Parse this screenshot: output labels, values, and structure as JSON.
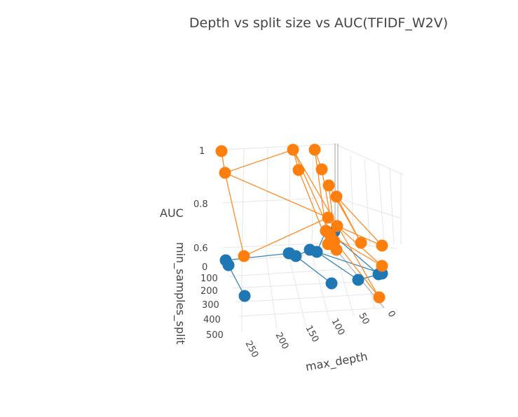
{
  "chart_data": {
    "type": "scatter",
    "title": "Depth vs split size vs AUC(TFIDF_W2V)",
    "zlabel": "AUC",
    "ylabel": "min_samples_split",
    "xlabel": "max_depth",
    "z_ticks": [
      "1",
      "0.8",
      "0.6"
    ],
    "y_ticks": [
      "0",
      "100",
      "200",
      "300",
      "400",
      "500"
    ],
    "x_ticks": [
      "250",
      "200",
      "150",
      "100",
      "50",
      "0"
    ],
    "colors": {
      "blue": "#1f77b4",
      "orange": "#ff7f0e",
      "grid": "#e6e6e6",
      "zero_axis": "#b0b0b0"
    },
    "series": [
      {
        "color": "#1f77b4",
        "values": [
          0.585,
          0.587,
          0.58,
          0.599,
          0.602,
          0.615,
          0.601,
          0.6,
          0.585,
          0.598,
          0.605,
          0.61,
          0.603,
          0.604,
          0.604
        ]
      },
      {
        "color": "#ff7f0e",
        "values": [
          1.0,
          0.99,
          0.97,
          0.92,
          0.89,
          0.84,
          0.8,
          0.72,
          0.7,
          0.68,
          0.66,
          0.64,
          0.63,
          0.62,
          0.61
        ]
      }
    ]
  }
}
